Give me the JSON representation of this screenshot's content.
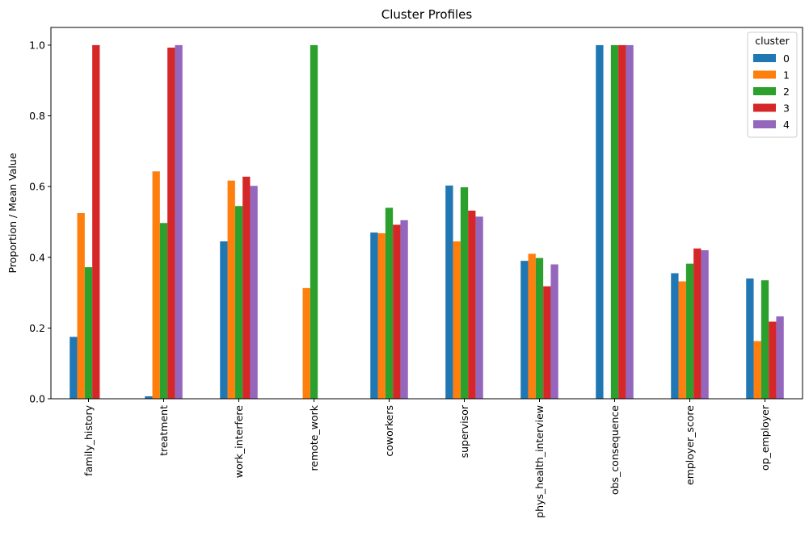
{
  "chart_data": {
    "type": "bar",
    "title": "Cluster Profiles",
    "xlabel": "",
    "ylabel": "Proportion / Mean Value",
    "ylim": [
      0,
      1.05
    ],
    "yticks": [
      "0.0",
      "0.2",
      "0.4",
      "0.6",
      "0.8",
      "1.0"
    ],
    "categories": [
      "family_history",
      "treatment",
      "work_interfere",
      "remote_work",
      "coworkers",
      "supervisor",
      "phys_health_interview",
      "obs_consequence",
      "employer_score",
      "op_employer"
    ],
    "legend": {
      "title": "cluster",
      "placement": "top-right"
    },
    "grid": false,
    "series": [
      {
        "name": "0",
        "color": "#1f77b4",
        "values": [
          0.175,
          0.007,
          0.445,
          0.0,
          0.47,
          0.603,
          0.39,
          1.0,
          0.355,
          0.34
        ]
      },
      {
        "name": "1",
        "color": "#ff7f0e",
        "values": [
          0.525,
          0.643,
          0.617,
          0.313,
          0.468,
          0.445,
          0.41,
          0.0,
          0.332,
          0.163
        ]
      },
      {
        "name": "2",
        "color": "#2ca02c",
        "values": [
          0.372,
          0.497,
          0.545,
          1.0,
          0.54,
          0.598,
          0.398,
          1.0,
          0.382,
          0.335
        ]
      },
      {
        "name": "3",
        "color": "#d62728",
        "values": [
          1.0,
          0.993,
          0.628,
          0.0,
          0.492,
          0.532,
          0.318,
          1.0,
          0.425,
          0.218
        ]
      },
      {
        "name": "4",
        "color": "#9467bd",
        "values": [
          0.0,
          1.0,
          0.602,
          0.0,
          0.505,
          0.515,
          0.38,
          1.0,
          0.42,
          0.233
        ]
      }
    ]
  }
}
